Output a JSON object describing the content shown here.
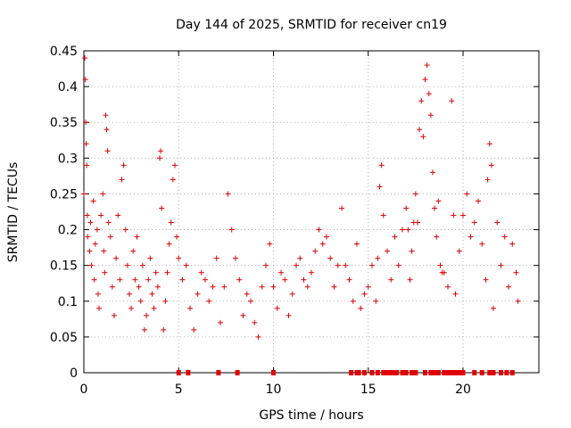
{
  "chart_data": {
    "type": "scatter",
    "title": "Day 144 of 2025, SRMTID for receiver cn19",
    "xlabel": "GPS time / hours",
    "ylabel": "SRMTID / TECUs",
    "xlim": [
      0,
      24
    ],
    "ylim": [
      0,
      0.45
    ],
    "xticks": [
      0,
      5,
      10,
      15,
      20
    ],
    "xtick_labels": [
      "0",
      "5",
      "10",
      "15",
      "20"
    ],
    "yticks": [
      0,
      0.05,
      0.1,
      0.15,
      0.2,
      0.25,
      0.3,
      0.35,
      0.4,
      0.45
    ],
    "ytick_labels": [
      "0",
      "0.05",
      "0.1",
      "0.15",
      "0.2",
      "0.25",
      "0.3",
      "0.35",
      "0.4",
      "0.45"
    ],
    "grid": true,
    "marker": "+",
    "color": "#e00000",
    "series": [
      {
        "name": "SRMTID",
        "points": [
          [
            0.0,
            0.25
          ],
          [
            0.05,
            0.44
          ],
          [
            0.08,
            0.41
          ],
          [
            0.1,
            0.35
          ],
          [
            0.12,
            0.32
          ],
          [
            0.15,
            0.29
          ],
          [
            0.18,
            0.22
          ],
          [
            0.2,
            0.19
          ],
          [
            0.3,
            0.17
          ],
          [
            0.35,
            0.21
          ],
          [
            0.4,
            0.15
          ],
          [
            0.5,
            0.24
          ],
          [
            0.55,
            0.13
          ],
          [
            0.6,
            0.18
          ],
          [
            0.7,
            0.2
          ],
          [
            0.75,
            0.11
          ],
          [
            0.8,
            0.09
          ],
          [
            0.9,
            0.22
          ],
          [
            1.0,
            0.25
          ],
          [
            1.05,
            0.17
          ],
          [
            1.1,
            0.14
          ],
          [
            1.15,
            0.36
          ],
          [
            1.2,
            0.34
          ],
          [
            1.25,
            0.31
          ],
          [
            1.3,
            0.21
          ],
          [
            1.4,
            0.19
          ],
          [
            1.5,
            0.12
          ],
          [
            1.6,
            0.08
          ],
          [
            1.7,
            0.16
          ],
          [
            1.8,
            0.22
          ],
          [
            1.9,
            0.13
          ],
          [
            2.0,
            0.27
          ],
          [
            2.1,
            0.29
          ],
          [
            2.2,
            0.2
          ],
          [
            2.3,
            0.15
          ],
          [
            2.4,
            0.11
          ],
          [
            2.5,
            0.09
          ],
          [
            2.6,
            0.17
          ],
          [
            2.7,
            0.13
          ],
          [
            2.8,
            0.19
          ],
          [
            2.9,
            0.12
          ],
          [
            3.0,
            0.1
          ],
          [
            3.1,
            0.15
          ],
          [
            3.2,
            0.06
          ],
          [
            3.3,
            0.08
          ],
          [
            3.4,
            0.13
          ],
          [
            3.5,
            0.16
          ],
          [
            3.6,
            0.11
          ],
          [
            3.7,
            0.09
          ],
          [
            3.8,
            0.14
          ],
          [
            3.9,
            0.12
          ],
          [
            4.0,
            0.3
          ],
          [
            4.05,
            0.31
          ],
          [
            4.1,
            0.23
          ],
          [
            4.2,
            0.06
          ],
          [
            4.3,
            0.1
          ],
          [
            4.4,
            0.14
          ],
          [
            4.5,
            0.18
          ],
          [
            4.6,
            0.21
          ],
          [
            4.7,
            0.27
          ],
          [
            4.8,
            0.29
          ],
          [
            4.9,
            0.19
          ],
          [
            5.0,
            0.16
          ],
          [
            5.2,
            0.13
          ],
          [
            5.4,
            0.15
          ],
          [
            5.6,
            0.09
          ],
          [
            5.8,
            0.06
          ],
          [
            6.0,
            0.11
          ],
          [
            6.2,
            0.14
          ],
          [
            6.4,
            0.13
          ],
          [
            6.6,
            0.1
          ],
          [
            6.8,
            0.12
          ],
          [
            7.0,
            0.16
          ],
          [
            7.2,
            0.07
          ],
          [
            7.4,
            0.12
          ],
          [
            7.6,
            0.25
          ],
          [
            7.8,
            0.2
          ],
          [
            8.0,
            0.16
          ],
          [
            8.2,
            0.13
          ],
          [
            8.4,
            0.08
          ],
          [
            8.6,
            0.11
          ],
          [
            8.8,
            0.1
          ],
          [
            9.0,
            0.07
          ],
          [
            9.2,
            0.05
          ],
          [
            9.4,
            0.12
          ],
          [
            9.6,
            0.15
          ],
          [
            9.8,
            0.18
          ],
          [
            10.0,
            0.12
          ],
          [
            10.2,
            0.09
          ],
          [
            10.4,
            0.14
          ],
          [
            10.6,
            0.13
          ],
          [
            10.8,
            0.08
          ],
          [
            11.0,
            0.11
          ],
          [
            11.2,
            0.15
          ],
          [
            11.4,
            0.16
          ],
          [
            11.6,
            0.13
          ],
          [
            11.8,
            0.12
          ],
          [
            12.0,
            0.14
          ],
          [
            12.2,
            0.17
          ],
          [
            12.4,
            0.2
          ],
          [
            12.6,
            0.18
          ],
          [
            12.8,
            0.19
          ],
          [
            13.0,
            0.16
          ],
          [
            13.2,
            0.12
          ],
          [
            13.4,
            0.15
          ],
          [
            13.6,
            0.23
          ],
          [
            13.8,
            0.15
          ],
          [
            14.0,
            0.13
          ],
          [
            14.2,
            0.1
          ],
          [
            14.4,
            0.18
          ],
          [
            14.6,
            0.09
          ],
          [
            14.8,
            0.11
          ],
          [
            15.0,
            0.12
          ],
          [
            15.2,
            0.15
          ],
          [
            15.4,
            0.1
          ],
          [
            15.5,
            0.16
          ],
          [
            15.6,
            0.26
          ],
          [
            15.7,
            0.29
          ],
          [
            15.8,
            0.22
          ],
          [
            16.0,
            0.17
          ],
          [
            16.2,
            0.13
          ],
          [
            16.4,
            0.19
          ],
          [
            16.6,
            0.15
          ],
          [
            16.8,
            0.2
          ],
          [
            17.0,
            0.23
          ],
          [
            17.1,
            0.2
          ],
          [
            17.2,
            0.13
          ],
          [
            17.3,
            0.17
          ],
          [
            17.4,
            0.21
          ],
          [
            17.5,
            0.25
          ],
          [
            17.6,
            0.21
          ],
          [
            17.7,
            0.34
          ],
          [
            17.8,
            0.38
          ],
          [
            17.9,
            0.33
          ],
          [
            18.0,
            0.41
          ],
          [
            18.1,
            0.43
          ],
          [
            18.2,
            0.39
          ],
          [
            18.3,
            0.36
          ],
          [
            18.4,
            0.28
          ],
          [
            18.5,
            0.23
          ],
          [
            18.6,
            0.19
          ],
          [
            18.7,
            0.24
          ],
          [
            18.8,
            0.15
          ],
          [
            18.9,
            0.14
          ],
          [
            19.0,
            0.14
          ],
          [
            19.2,
            0.12
          ],
          [
            19.4,
            0.38
          ],
          [
            19.5,
            0.22
          ],
          [
            19.6,
            0.11
          ],
          [
            19.8,
            0.17
          ],
          [
            20.0,
            0.22
          ],
          [
            20.2,
            0.25
          ],
          [
            20.4,
            0.19
          ],
          [
            20.6,
            0.21
          ],
          [
            20.8,
            0.24
          ],
          [
            21.0,
            0.18
          ],
          [
            21.2,
            0.13
          ],
          [
            21.3,
            0.27
          ],
          [
            21.4,
            0.32
          ],
          [
            21.5,
            0.29
          ],
          [
            21.6,
            0.09
          ],
          [
            21.8,
            0.21
          ],
          [
            22.0,
            0.15
          ],
          [
            22.2,
            0.19
          ],
          [
            22.4,
            0.12
          ],
          [
            22.6,
            0.18
          ],
          [
            22.8,
            0.14
          ],
          [
            22.9,
            0.1
          ]
        ]
      }
    ],
    "zero_points_x": [
      5.0,
      5.5,
      7.1,
      8.1,
      10.0,
      14.1,
      14.4,
      14.5,
      14.8,
      15.2,
      15.5,
      15.8,
      16.0,
      16.1,
      16.3,
      16.5,
      16.8,
      17.0,
      17.3,
      17.5,
      18.0,
      18.3,
      18.5,
      18.7,
      19.0,
      19.2,
      19.4,
      19.6,
      19.8,
      20.0,
      20.6,
      21.0,
      21.4,
      21.6,
      22.0,
      22.3,
      22.6
    ]
  }
}
